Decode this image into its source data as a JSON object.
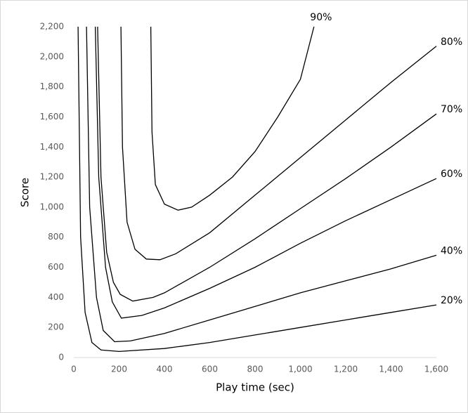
{
  "chart_data": {
    "type": "line",
    "x_label": "Play time (sec)",
    "y_label": "Score",
    "xlim": [
      0,
      1600
    ],
    "ylim": [
      0,
      2200
    ],
    "xticks": [
      0,
      200,
      400,
      600,
      800,
      {
        "value": 1000,
        "label": "1,000"
      },
      {
        "value": 1200,
        "label": "1,200"
      },
      {
        "value": 1400,
        "label": "1,400"
      },
      {
        "value": 1600,
        "label": "1,600"
      }
    ],
    "yticks": [
      0,
      200,
      400,
      600,
      800,
      {
        "value": 1000,
        "label": "1,000"
      },
      {
        "value": 1200,
        "label": "1,200"
      },
      {
        "value": 1400,
        "label": "1,400"
      },
      {
        "value": 1600,
        "label": "1,600"
      },
      {
        "value": 1800,
        "label": "1,800"
      },
      {
        "value": 2000,
        "label": "2,000"
      },
      {
        "value": 2200,
        "label": "2,200"
      }
    ],
    "grid": false,
    "series": [
      {
        "name": "20%",
        "color": "#000000",
        "x": [
          19,
          30,
          50,
          80,
          120,
          200,
          400,
          600,
          800,
          1000,
          1200,
          1400,
          1600
        ],
        "values": [
          2200,
          800,
          300,
          100,
          50,
          40,
          60,
          100,
          150,
          200,
          250,
          300,
          350
        ]
      },
      {
        "name": "40%",
        "color": "#000000",
        "x": [
          56,
          70,
          100,
          130,
          180,
          250,
          400,
          600,
          800,
          1000,
          1200,
          1400,
          1600
        ],
        "values": [
          2200,
          1000,
          400,
          180,
          105,
          110,
          160,
          250,
          340,
          430,
          510,
          590,
          680
        ]
      },
      {
        "name": "60%",
        "color": "#000000",
        "x": [
          95,
          110,
          140,
          170,
          210,
          300,
          400,
          600,
          800,
          1000,
          1200,
          1400,
          1600
        ],
        "values": [
          2200,
          1200,
          600,
          370,
          262,
          280,
          330,
          460,
          600,
          760,
          910,
          1050,
          1190
        ]
      },
      {
        "name": "70%",
        "color": "#000000",
        "x": [
          105,
          120,
          145,
          175,
          205,
          260,
          350,
          400,
          600,
          800,
          1000,
          1200,
          1400,
          1600
        ],
        "values": [
          2200,
          1200,
          700,
          500,
          420,
          375,
          400,
          430,
          600,
          790,
          990,
          1190,
          1400,
          1620
        ]
      },
      {
        "name": "80%",
        "color": "#000000",
        "x": [
          208,
          215,
          235,
          270,
          320,
          380,
          450,
          600,
          800,
          1000,
          1200,
          1400,
          1600
        ],
        "values": [
          2200,
          1400,
          900,
          720,
          655,
          650,
          690,
          830,
          1080,
          1330,
          1580,
          1830,
          2070
        ]
      },
      {
        "name": "90%",
        "color": "#000000",
        "x": [
          340,
          345,
          360,
          400,
          460,
          520,
          600,
          700,
          800,
          900,
          1000,
          1060
        ],
        "values": [
          2200,
          1500,
          1150,
          1020,
          980,
          1000,
          1080,
          1200,
          1370,
          1600,
          1850,
          2200
        ]
      }
    ]
  }
}
